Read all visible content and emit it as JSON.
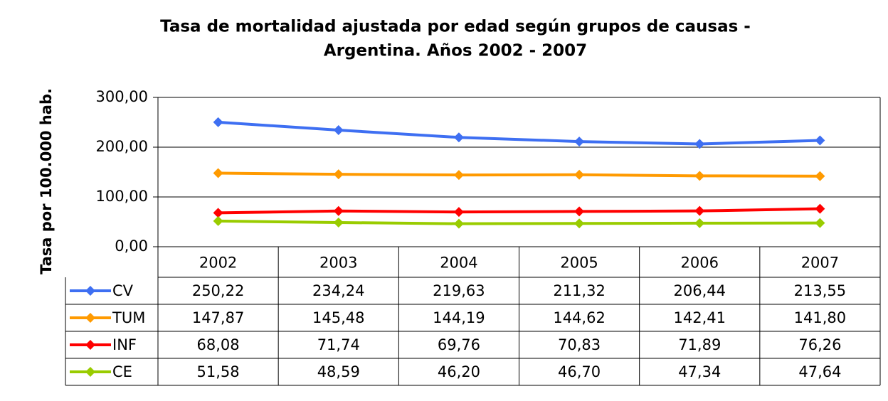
{
  "chart_data": {
    "type": "line",
    "title": [
      "Tasa de mortalidad ajustada por edad según grupos de causas -",
      "Argentina. Años 2002 - 2007"
    ],
    "y_label": "Tasa por 100.000 hab.",
    "categories": [
      "2002",
      "2003",
      "2004",
      "2005",
      "2006",
      "2007"
    ],
    "series": [
      {
        "name": "CV",
        "color": "#3e6ff2",
        "values": [
          250.22,
          234.24,
          219.63,
          211.32,
          206.44,
          213.55
        ],
        "value_labels": [
          "250,22",
          "234,24",
          "219,63",
          "211,32",
          "206,44",
          "213,55"
        ]
      },
      {
        "name": "TUM",
        "color": "#ff9a00",
        "values": [
          147.87,
          145.48,
          144.19,
          144.62,
          142.41,
          141.8
        ],
        "value_labels": [
          "147,87",
          "145,48",
          "144,19",
          "144,62",
          "142,41",
          "141,80"
        ]
      },
      {
        "name": "INF",
        "color": "#ff0000",
        "values": [
          68.08,
          71.74,
          69.76,
          70.83,
          71.89,
          76.26
        ],
        "value_labels": [
          "68,08",
          "71,74",
          "69,76",
          "70,83",
          "71,89",
          "76,26"
        ]
      },
      {
        "name": "CE",
        "color": "#99cc00",
        "values": [
          51.58,
          48.59,
          46.2,
          46.7,
          47.34,
          47.64
        ],
        "value_labels": [
          "51,58",
          "48,59",
          "46,20",
          "46,70",
          "47,34",
          "47,64"
        ]
      }
    ],
    "ylim": [
      0,
      300
    ],
    "yticks": [
      {
        "value": 0,
        "label": "0,00"
      },
      {
        "value": 100,
        "label": "100,00"
      },
      {
        "value": 200,
        "label": "200,00"
      },
      {
        "value": 300,
        "label": "300,00"
      }
    ],
    "grid": true
  }
}
